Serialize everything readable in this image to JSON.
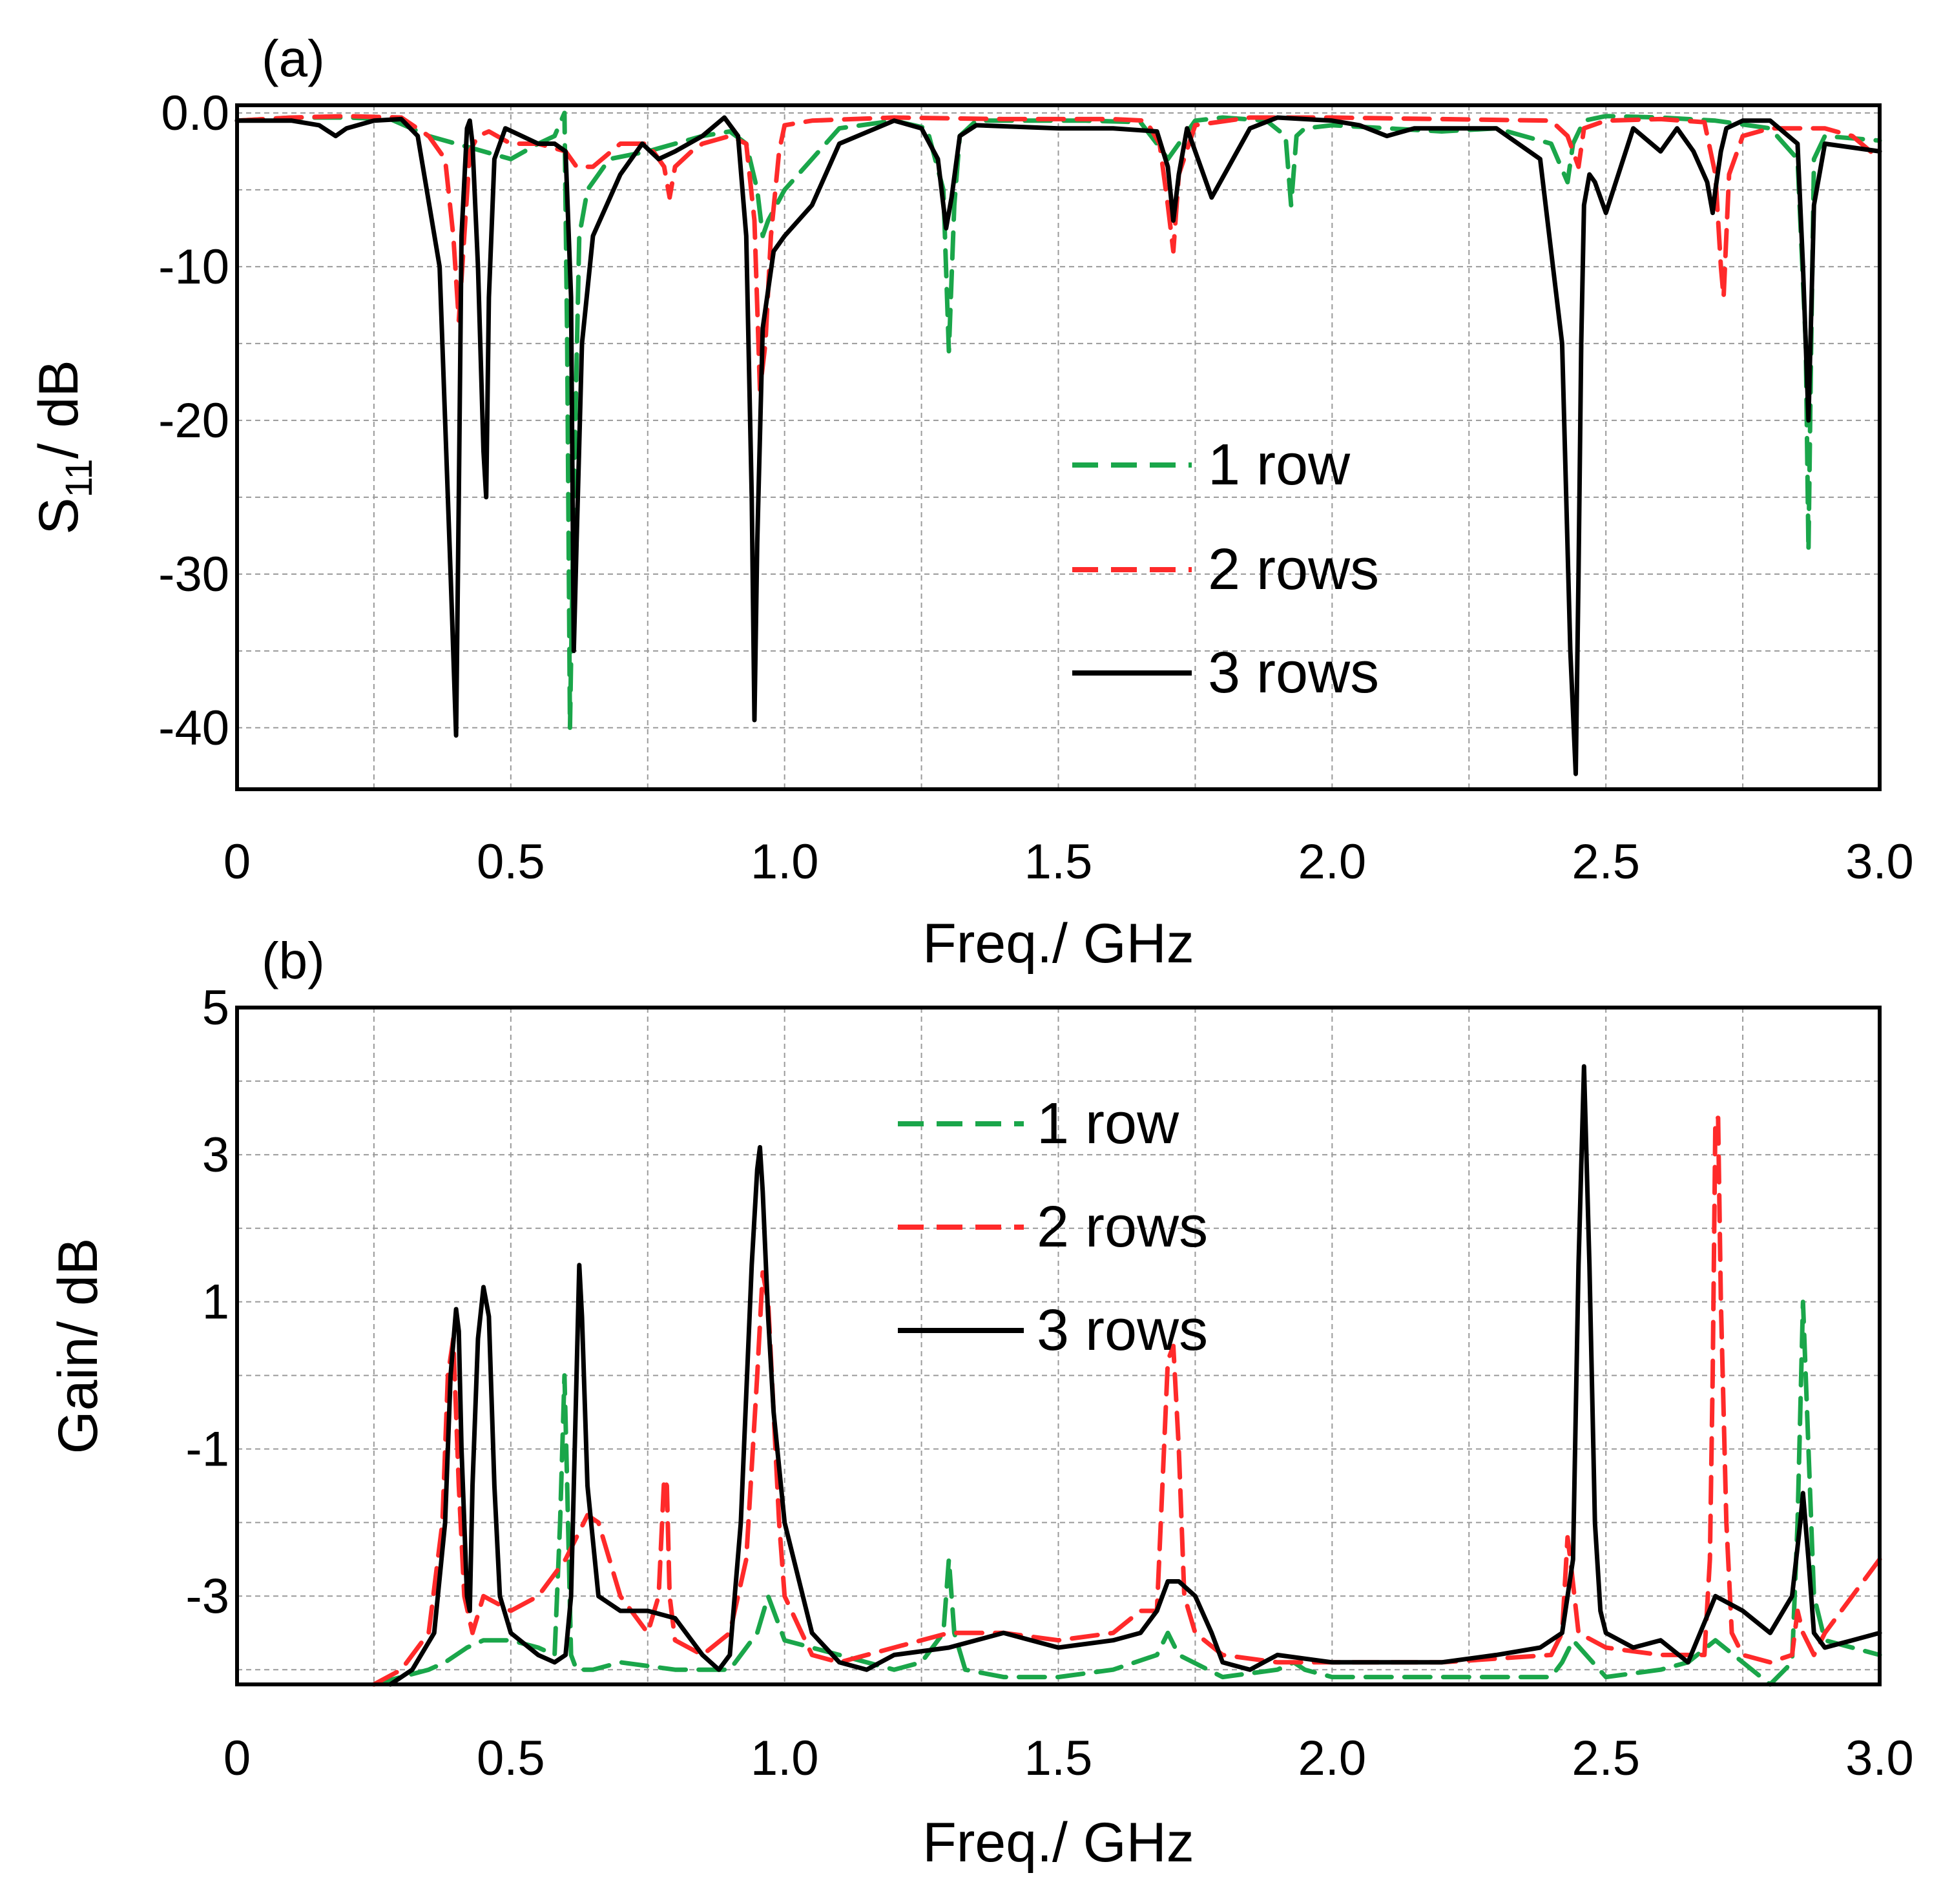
{
  "chart_data": [
    {
      "type": "line",
      "panel_label": "(a)",
      "title": "",
      "xlabel": "Freq./ GHz",
      "ylabel_main": "S",
      "ylabel_sub": "11",
      "ylabel_rest": "/ dB",
      "xlim": [
        0,
        3.0
      ],
      "ylim": [
        -44,
        0.5
      ],
      "xticks": [
        0,
        0.5,
        1.0,
        1.5,
        2.0,
        2.5,
        3.0
      ],
      "xtick_labels": [
        "0",
        "0.5",
        "1.0",
        "1.5",
        "2.0",
        "2.5",
        "3.0"
      ],
      "yticks": [
        0,
        -10,
        -20,
        -30,
        -40
      ],
      "ytick_labels": [
        "0.0",
        "-10",
        "-20",
        "-30",
        "-40"
      ],
      "grid": true,
      "legend_position": "center-right",
      "series": [
        {
          "name": "1 row",
          "color": "#1aa64a",
          "dash": "dashed",
          "x": [
            0,
            0.1,
            0.2,
            0.28,
            0.35,
            0.4,
            0.45,
            0.5,
            0.55,
            0.58,
            0.598,
            0.603,
            0.608,
            0.615,
            0.625,
            0.64,
            0.68,
            0.75,
            0.8,
            0.85,
            0.9,
            0.93,
            0.95,
            0.96,
            0.97,
            1.0,
            1.05,
            1.1,
            1.2,
            1.26,
            1.29,
            1.3,
            1.31,
            1.32,
            1.35,
            1.45,
            1.55,
            1.65,
            1.68,
            1.7,
            1.72,
            1.75,
            1.8,
            1.88,
            1.915,
            1.925,
            1.935,
            1.95,
            2.0,
            2.1,
            2.2,
            2.3,
            2.4,
            2.43,
            2.44,
            2.46,
            2.5,
            2.6,
            2.7,
            2.8,
            2.85,
            2.865,
            2.87,
            2.875,
            2.88,
            2.9,
            3.0
          ],
          "y": [
            -0.5,
            -0.3,
            -0.3,
            -0.4,
            -1.5,
            -2,
            -2.5,
            -3,
            -2,
            -1.5,
            0,
            -15,
            -40,
            -25,
            -8,
            -5,
            -3,
            -2.5,
            -2,
            -1.5,
            -1.2,
            -2,
            -5,
            -8,
            -7,
            -5,
            -3,
            -1,
            -0.5,
            -1,
            -5,
            -15.5,
            -6,
            -1.5,
            -0.5,
            -0.5,
            -0.5,
            -0.6,
            -2,
            -3,
            -2,
            -0.5,
            -0.3,
            -0.5,
            -1.5,
            -6,
            -1.5,
            -1,
            -0.8,
            -1,
            -1.2,
            -1,
            -2,
            -4.5,
            -2,
            -0.5,
            -0.2,
            -0.3,
            -0.5,
            -1,
            -3,
            -15,
            -28.5,
            -15,
            -3,
            -1.5,
            -1.8
          ]
        },
        {
          "name": "2 rows",
          "color": "#ff2a2a",
          "dash": "dashed",
          "x": [
            0,
            0.1,
            0.2,
            0.3,
            0.35,
            0.38,
            0.395,
            0.405,
            0.415,
            0.425,
            0.44,
            0.46,
            0.5,
            0.55,
            0.6,
            0.62,
            0.65,
            0.7,
            0.75,
            0.78,
            0.79,
            0.8,
            0.83,
            0.85,
            0.9,
            0.93,
            0.945,
            0.955,
            0.965,
            0.975,
            0.99,
            1.0,
            1.05,
            1.2,
            1.4,
            1.6,
            1.66,
            1.685,
            1.7,
            1.71,
            1.72,
            1.75,
            1.85,
            2.0,
            2.2,
            2.4,
            2.43,
            2.45,
            2.46,
            2.5,
            2.6,
            2.68,
            2.7,
            2.71,
            2.715,
            2.725,
            2.75,
            2.8,
            2.9,
            2.95,
            3.0
          ],
          "y": [
            -0.5,
            -0.3,
            -0.2,
            -0.3,
            -1.5,
            -3,
            -8,
            -13.5,
            -8,
            -2.5,
            -1.5,
            -1.2,
            -2,
            -2,
            -2.5,
            -3.5,
            -3.5,
            -2,
            -2,
            -3.5,
            -5.5,
            -3.5,
            -2.5,
            -2,
            -1.5,
            -2,
            -7,
            -18,
            -15,
            -8,
            -2.5,
            -0.8,
            -0.5,
            -0.3,
            -0.4,
            -0.4,
            -0.5,
            -2,
            -6,
            -9,
            -4,
            -0.8,
            -0.3,
            -0.3,
            -0.4,
            -0.5,
            -1.5,
            -3.5,
            -1,
            -0.5,
            -0.4,
            -0.6,
            -4,
            -10,
            -12,
            -4,
            -1.5,
            -1,
            -1,
            -1.5,
            -3
          ]
        },
        {
          "name": "3 rows",
          "color": "#000000",
          "dash": "solid",
          "x": [
            0,
            0.1,
            0.15,
            0.18,
            0.2,
            0.25,
            0.3,
            0.33,
            0.37,
            0.39,
            0.4,
            0.405,
            0.41,
            0.42,
            0.425,
            0.43,
            0.44,
            0.45,
            0.455,
            0.46,
            0.47,
            0.49,
            0.52,
            0.55,
            0.58,
            0.6,
            0.61,
            0.615,
            0.62,
            0.63,
            0.65,
            0.7,
            0.74,
            0.77,
            0.8,
            0.85,
            0.89,
            0.915,
            0.93,
            0.94,
            0.945,
            0.95,
            0.96,
            0.98,
            1.0,
            1.05,
            1.1,
            1.2,
            1.25,
            1.28,
            1.295,
            1.305,
            1.32,
            1.35,
            1.5,
            1.6,
            1.68,
            1.7,
            1.71,
            1.72,
            1.735,
            1.76,
            1.78,
            1.85,
            1.9,
            2.0,
            2.05,
            2.1,
            2.15,
            2.2,
            2.3,
            2.38,
            2.42,
            2.435,
            2.445,
            2.45,
            2.455,
            2.46,
            2.47,
            2.48,
            2.5,
            2.55,
            2.6,
            2.63,
            2.66,
            2.685,
            2.695,
            2.7,
            2.71,
            2.72,
            2.75,
            2.8,
            2.85,
            2.86,
            2.87,
            2.88,
            2.9,
            3.0
          ],
          "y": [
            -0.5,
            -0.5,
            -0.8,
            -1.5,
            -1,
            -0.5,
            -0.4,
            -1.5,
            -10,
            -30,
            -40.5,
            -25,
            -8,
            -1,
            -0.5,
            -2,
            -10,
            -22,
            -25,
            -12,
            -3,
            -1,
            -1.5,
            -2,
            -2,
            -2.5,
            -12,
            -35,
            -28,
            -15,
            -8,
            -4,
            -2,
            -3,
            -2.5,
            -1.5,
            -0.3,
            -1.5,
            -8,
            -25,
            -39.5,
            -28,
            -14,
            -9,
            -8,
            -6,
            -2,
            -0.5,
            -1,
            -3,
            -7.5,
            -5.5,
            -1.5,
            -0.8,
            -1,
            -1,
            -1.2,
            -3.5,
            -7,
            -4,
            -1,
            -3.5,
            -5.5,
            -1,
            -0.3,
            -0.5,
            -0.8,
            -1.5,
            -1,
            -1,
            -1,
            -3,
            -15,
            -35,
            -43,
            -30,
            -15,
            -6,
            -4,
            -4.5,
            -6.5,
            -1,
            -2.5,
            -1,
            -2.5,
            -4.5,
            -6.5,
            -5,
            -2.5,
            -1,
            -0.5,
            -0.5,
            -2,
            -10,
            -20,
            -6,
            -2,
            -2.5
          ]
        }
      ]
    },
    {
      "type": "line",
      "panel_label": "(b)",
      "title": "",
      "xlabel": "Freq./ GHz",
      "ylabel": "Gain/ dB",
      "xlim": [
        0,
        3.0
      ],
      "ylim": [
        -4.2,
        5
      ],
      "xticks": [
        0,
        0.5,
        1.0,
        1.5,
        2.0,
        2.5,
        3.0
      ],
      "xtick_labels": [
        "0",
        "0.5",
        "1.0",
        "1.5",
        "2.0",
        "2.5",
        "3.0"
      ],
      "yticks": [
        5,
        3,
        1,
        -1,
        -3
      ],
      "ytick_labels": [
        "5",
        "3",
        "1",
        "-1",
        "-3"
      ],
      "grid": true,
      "legend_position": "upper-center",
      "series": [
        {
          "name": "1 row",
          "color": "#1aa64a",
          "dash": "dashed",
          "x": [
            0.25,
            0.3,
            0.35,
            0.38,
            0.4,
            0.42,
            0.45,
            0.5,
            0.55,
            0.58,
            0.59,
            0.598,
            0.603,
            0.61,
            0.62,
            0.65,
            0.7,
            0.8,
            0.9,
            0.95,
            0.97,
            1.0,
            1.1,
            1.2,
            1.25,
            1.29,
            1.3,
            1.31,
            1.33,
            1.4,
            1.5,
            1.6,
            1.68,
            1.7,
            1.72,
            1.8,
            1.9,
            1.93,
            1.95,
            2.0,
            2.2,
            2.4,
            2.42,
            2.44,
            2.5,
            2.6,
            2.65,
            2.7,
            2.75,
            2.8,
            2.84,
            2.85,
            2.86,
            2.87,
            2.88,
            2.9,
            3.0
          ],
          "y": [
            -4.2,
            -4.1,
            -4.0,
            -3.9,
            -3.8,
            -3.7,
            -3.6,
            -3.6,
            -3.7,
            -3.8,
            -2,
            0,
            -1.5,
            -3.8,
            -4,
            -4.0,
            -3.9,
            -4.0,
            -4.0,
            -3.5,
            -3.0,
            -3.6,
            -3.8,
            -4.0,
            -3.9,
            -3.5,
            -2.5,
            -3.5,
            -4.0,
            -4.1,
            -4.1,
            -4.0,
            -3.8,
            -3.5,
            -3.8,
            -4.1,
            -4.0,
            -3.9,
            -4.0,
            -4.1,
            -4.1,
            -4.1,
            -3.9,
            -3.6,
            -4.1,
            -4.0,
            -3.9,
            -3.6,
            -3.9,
            -4.2,
            -3.9,
            -2,
            1,
            -1,
            -3,
            -3.6,
            -3.8
          ]
        },
        {
          "name": "2 rows",
          "color": "#ff2a2a",
          "dash": "dashed",
          "x": [
            0.25,
            0.3,
            0.35,
            0.375,
            0.385,
            0.395,
            0.405,
            0.415,
            0.43,
            0.45,
            0.5,
            0.55,
            0.6,
            0.64,
            0.66,
            0.7,
            0.75,
            0.77,
            0.78,
            0.785,
            0.79,
            0.8,
            0.85,
            0.9,
            0.93,
            0.95,
            0.96,
            0.97,
            0.98,
            0.99,
            1.0,
            1.05,
            1.1,
            1.2,
            1.3,
            1.4,
            1.5,
            1.6,
            1.65,
            1.68,
            1.69,
            1.7,
            1.71,
            1.72,
            1.73,
            1.75,
            1.8,
            1.9,
            2.0,
            2.2,
            2.4,
            2.42,
            2.43,
            2.435,
            2.45,
            2.5,
            2.6,
            2.68,
            2.69,
            2.695,
            2.7,
            2.705,
            2.71,
            2.72,
            2.73,
            2.75,
            2.8,
            2.84,
            2.85,
            2.86,
            2.88,
            2.9,
            2.95,
            3.0
          ],
          "y": [
            -4.2,
            -4.0,
            -3.5,
            -2,
            0,
            0.5,
            -1.5,
            -3,
            -3.5,
            -3.0,
            -3.2,
            -3.0,
            -2.5,
            -1.9,
            -2.0,
            -3.0,
            -3.5,
            -3,
            -1.4,
            -1.5,
            -3,
            -3.6,
            -3.8,
            -3.5,
            -2.5,
            0,
            1.4,
            1.0,
            -0.5,
            -2,
            -3.0,
            -3.8,
            -3.9,
            -3.7,
            -3.5,
            -3.5,
            -3.6,
            -3.5,
            -3.2,
            -3.2,
            -1.5,
            0.2,
            0.4,
            -1,
            -3,
            -3.5,
            -3.8,
            -3.9,
            -3.9,
            -3.9,
            -3.8,
            -3.5,
            -2.2,
            -2.5,
            -3.5,
            -3.7,
            -3.8,
            -3.8,
            -2.5,
            0,
            3.5,
            3.5,
            1,
            -2,
            -3.5,
            -3.8,
            -3.9,
            -3.8,
            -3.2,
            -3.5,
            -3.8,
            -3.5,
            -3.0,
            -2.5
          ]
        },
        {
          "name": "3 rows",
          "color": "#000000",
          "dash": "solid",
          "x": [
            0.28,
            0.32,
            0.36,
            0.38,
            0.39,
            0.4,
            0.405,
            0.41,
            0.42,
            0.425,
            0.43,
            0.44,
            0.45,
            0.46,
            0.47,
            0.48,
            0.5,
            0.55,
            0.58,
            0.6,
            0.61,
            0.62,
            0.625,
            0.63,
            0.64,
            0.66,
            0.7,
            0.75,
            0.8,
            0.85,
            0.88,
            0.9,
            0.92,
            0.94,
            0.95,
            0.955,
            0.96,
            0.97,
            0.98,
            1.0,
            1.05,
            1.1,
            1.15,
            1.2,
            1.3,
            1.4,
            1.5,
            1.6,
            1.65,
            1.68,
            1.7,
            1.72,
            1.75,
            1.78,
            1.8,
            1.85,
            1.9,
            2.0,
            2.1,
            2.2,
            2.3,
            2.38,
            2.42,
            2.44,
            2.45,
            2.46,
            2.47,
            2.48,
            2.49,
            2.5,
            2.55,
            2.6,
            2.65,
            2.7,
            2.75,
            2.8,
            2.84,
            2.855,
            2.86,
            2.87,
            2.88,
            2.9,
            2.95,
            3.0
          ],
          "y": [
            -4.2,
            -4.0,
            -3.5,
            -2,
            0,
            0.9,
            0.6,
            -1,
            -3,
            -3.2,
            -1.5,
            0.5,
            1.2,
            0.8,
            -1.5,
            -3,
            -3.5,
            -3.8,
            -3.9,
            -3.8,
            -3,
            0,
            1.5,
            0.8,
            -1.5,
            -3,
            -3.2,
            -3.2,
            -3.3,
            -3.8,
            -4.0,
            -3.8,
            -2,
            1.5,
            2.8,
            3.1,
            2.5,
            0.8,
            -0.5,
            -2.0,
            -3.5,
            -3.9,
            -4.0,
            -3.8,
            -3.7,
            -3.5,
            -3.7,
            -3.6,
            -3.5,
            -3.2,
            -2.8,
            -2.8,
            -3.0,
            -3.5,
            -3.9,
            -4.0,
            -3.8,
            -3.9,
            -3.9,
            -3.9,
            -3.8,
            -3.7,
            -3.5,
            -2.5,
            1.5,
            4.2,
            1.5,
            -2,
            -3.2,
            -3.5,
            -3.7,
            -3.6,
            -3.9,
            -3.0,
            -3.2,
            -3.5,
            -3.0,
            -2,
            -1.6,
            -2.5,
            -3.5,
            -3.7,
            -3.6,
            -3.5
          ]
        }
      ]
    }
  ]
}
